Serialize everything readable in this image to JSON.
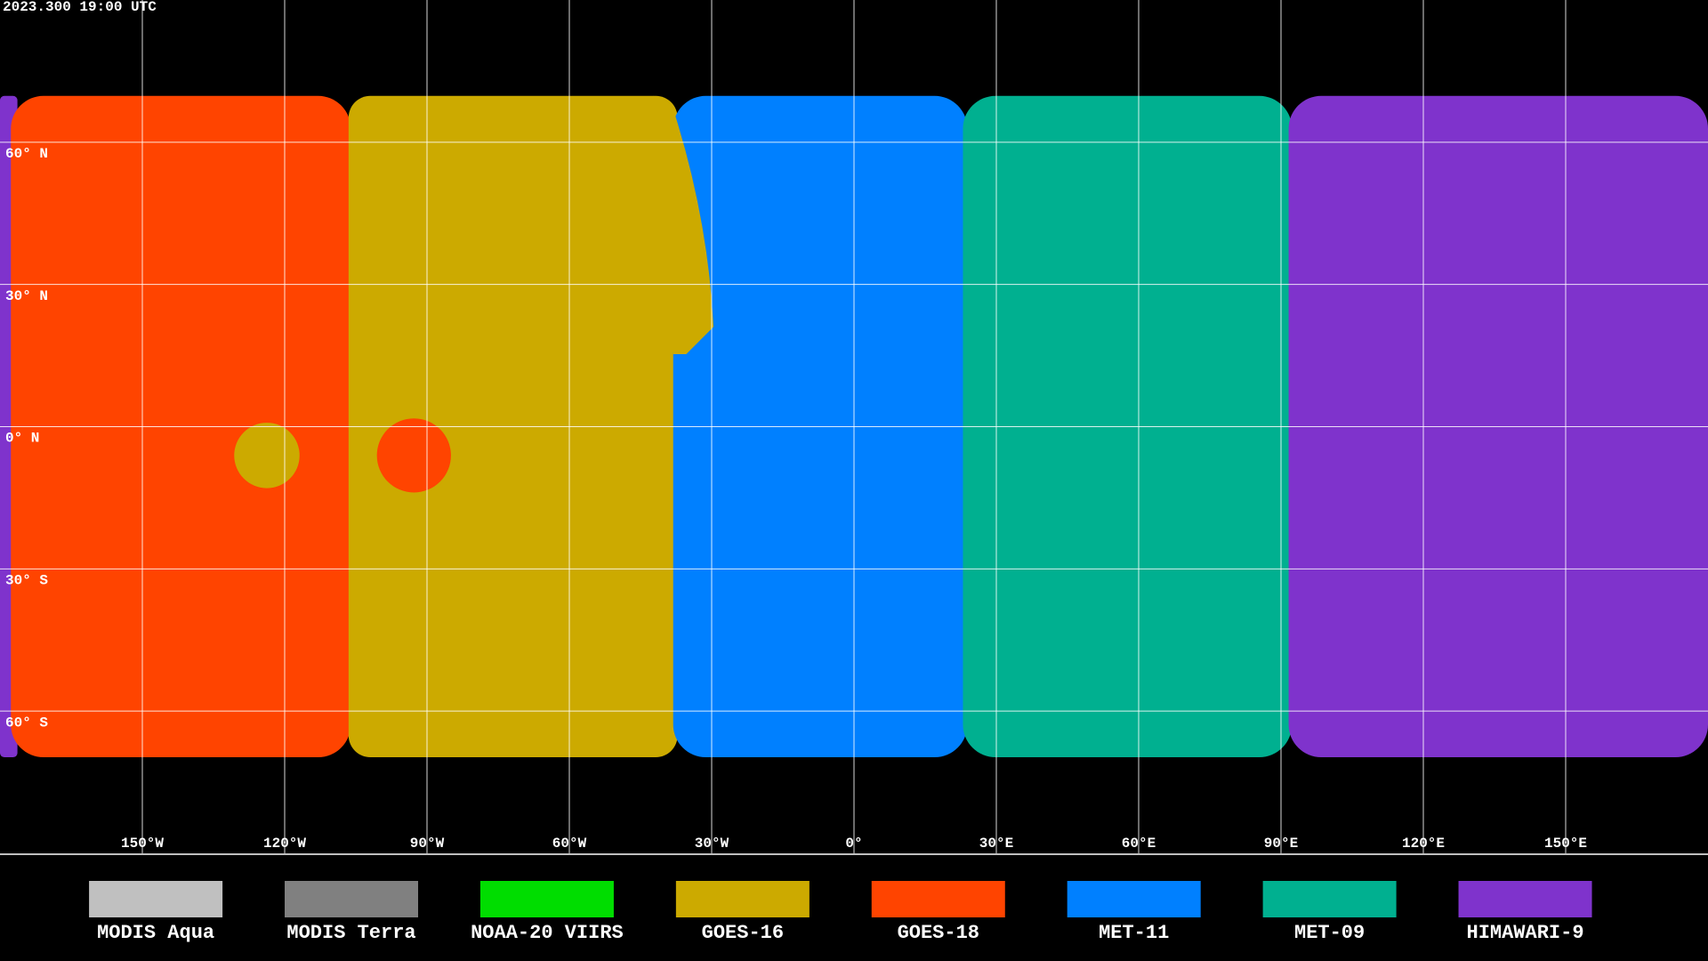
{
  "header": {
    "timestamp": "2023.300 19:00 UTC"
  },
  "map": {
    "longitudes": [
      {
        "value": -150,
        "label": "150°W"
      },
      {
        "value": -120,
        "label": "120°W"
      },
      {
        "value": -90,
        "label": "90°W"
      },
      {
        "value": -60,
        "label": "60°W"
      },
      {
        "value": -30,
        "label": "30°W"
      },
      {
        "value": 0,
        "label": "0°"
      },
      {
        "value": 30,
        "label": "30°E"
      },
      {
        "value": 60,
        "label": "60°E"
      },
      {
        "value": 90,
        "label": "90°E"
      },
      {
        "value": 120,
        "label": "120°E"
      },
      {
        "value": 150,
        "label": "150°E"
      }
    ],
    "latitudes": [
      {
        "value": 60,
        "label": "60° N"
      },
      {
        "value": 30,
        "label": "30° N"
      },
      {
        "value": 0,
        "label": "0° N"
      },
      {
        "value": -30,
        "label": "30° S"
      },
      {
        "value": -60,
        "label": "60° S"
      }
    ]
  },
  "legend": [
    {
      "name": "MODIS Aqua",
      "color": "#c0c0c0"
    },
    {
      "name": "MODIS Terra",
      "color": "#808080"
    },
    {
      "name": "NOAA-20 VIIRS",
      "color": "#00dd00"
    },
    {
      "name": "GOES-16",
      "color": "#ccaa00"
    },
    {
      "name": "GOES-18",
      "color": "#ff4400"
    },
    {
      "name": "MET-11",
      "color": "#0080ff"
    },
    {
      "name": "MET-09",
      "color": "#00b090"
    },
    {
      "name": "HIMAWARI-9",
      "color": "#7f33cc"
    }
  ]
}
